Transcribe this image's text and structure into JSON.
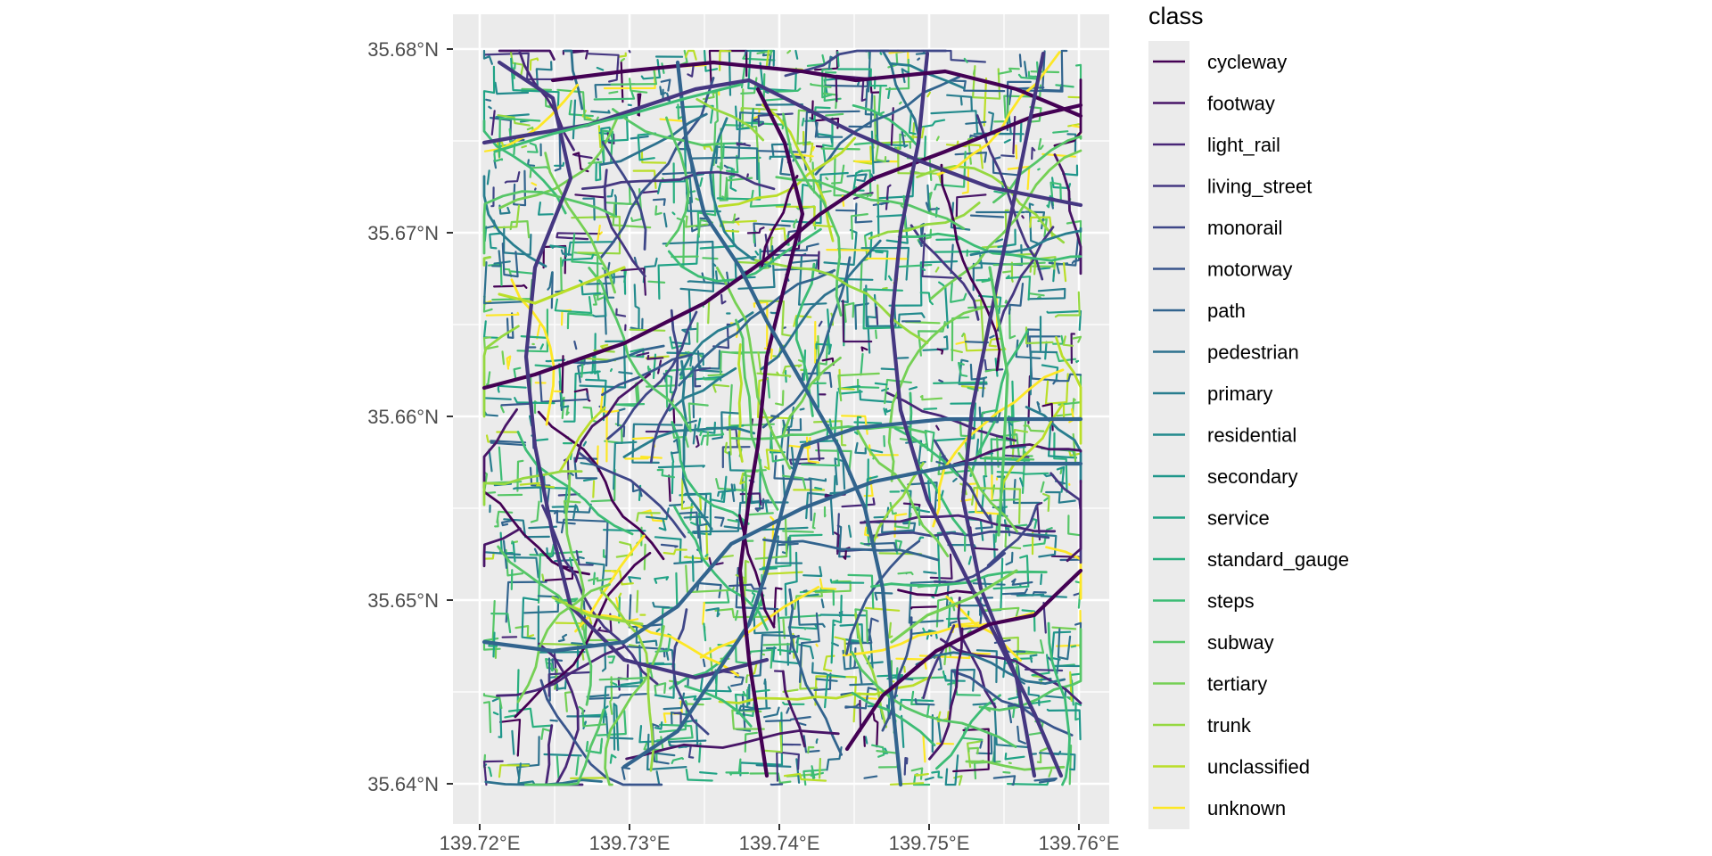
{
  "map": {
    "x_axis_ticks": [
      "139.72°E",
      "139.73°E",
      "139.74°E",
      "139.75°E",
      "139.76°E"
    ],
    "y_axis_ticks": [
      "35.64°N",
      "35.65°N",
      "35.66°N",
      "35.67°N",
      "35.68°N"
    ],
    "lon_range": [
      139.718,
      139.762
    ],
    "lat_range": [
      35.638,
      35.682
    ],
    "background_color": "#ebebeb",
    "grid_color": "#ffffff"
  },
  "legend": {
    "title": "class",
    "entries": [
      {
        "label": "cycleway",
        "color": "#440154"
      },
      {
        "label": "footway",
        "color": "#481567"
      },
      {
        "label": "light_rail",
        "color": "#482677"
      },
      {
        "label": "living_street",
        "color": "#453781"
      },
      {
        "label": "monorail",
        "color": "#3f4788"
      },
      {
        "label": "motorway",
        "color": "#39558c"
      },
      {
        "label": "path",
        "color": "#32648e"
      },
      {
        "label": "pedestrian",
        "color": "#2d718e"
      },
      {
        "label": "primary",
        "color": "#287d8e"
      },
      {
        "label": "residential",
        "color": "#238a8d"
      },
      {
        "label": "secondary",
        "color": "#1f968b"
      },
      {
        "label": "service",
        "color": "#20a386"
      },
      {
        "label": "standard_gauge",
        "color": "#29af7f"
      },
      {
        "label": "steps",
        "color": "#3cbc75"
      },
      {
        "label": "subway",
        "color": "#56c667"
      },
      {
        "label": "tertiary",
        "color": "#75d054"
      },
      {
        "label": "trunk",
        "color": "#95d840"
      },
      {
        "label": "unclassified",
        "color": "#bade28"
      },
      {
        "label": "unknown",
        "color": "#fde725"
      }
    ]
  }
}
